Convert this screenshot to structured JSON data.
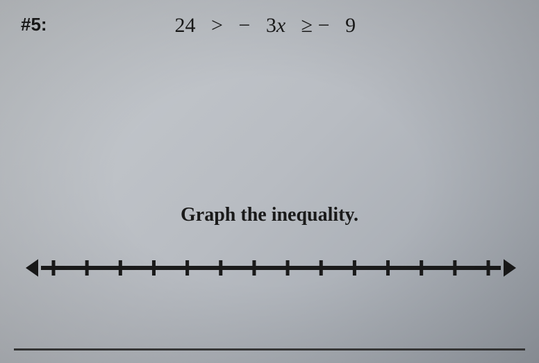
{
  "problem": {
    "number_label": "#5:",
    "lhs": "24",
    "op1": ">",
    "mid_minus": "−",
    "coef": "3",
    "var": "x",
    "op2": "≥",
    "rhs_minus": "−",
    "rhs": "9"
  },
  "instruction": "Graph the inequality.",
  "numberline": {
    "tick_count": 14,
    "line_color": "#1a1a1a",
    "line_width": 6,
    "tick_height": 22,
    "tick_width": 5,
    "arrow_size": 18
  }
}
